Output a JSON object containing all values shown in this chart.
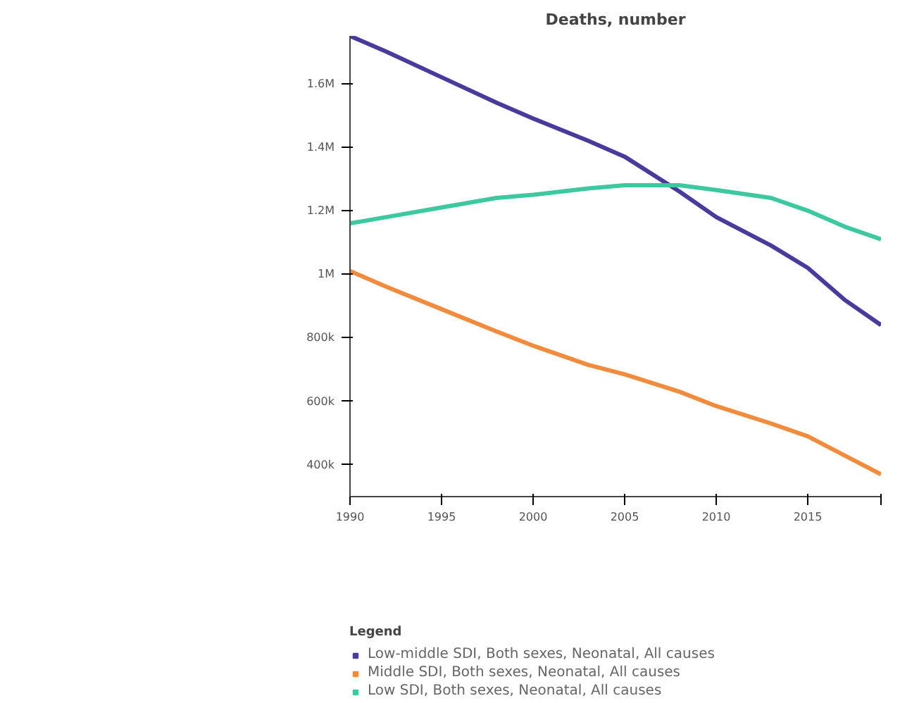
{
  "chart_data": {
    "type": "line",
    "title": "Deaths, number",
    "legend_title": "Legend",
    "x": [
      1990,
      1992,
      1995,
      1998,
      2000,
      2003,
      2005,
      2008,
      2010,
      2013,
      2015,
      2017,
      2019
    ],
    "series": [
      {
        "name": "Low-middle SDI, Both sexes, Neonatal, All causes",
        "color": "#4b3a9e",
        "values": [
          1750000,
          1700000,
          1620000,
          1540000,
          1490000,
          1420000,
          1370000,
          1260000,
          1180000,
          1090000,
          1020000,
          920000,
          840000
        ]
      },
      {
        "name": "Middle SDI, Both sexes, Neonatal, All causes",
        "color": "#f28c3c",
        "values": [
          1010000,
          960000,
          890000,
          820000,
          775000,
          715000,
          685000,
          630000,
          585000,
          530000,
          490000,
          430000,
          370000
        ]
      },
      {
        "name": "Low SDI, Both sexes, Neonatal, All causes",
        "color": "#3dc9a0",
        "values": [
          1160000,
          1180000,
          1210000,
          1240000,
          1250000,
          1270000,
          1280000,
          1280000,
          1265000,
          1240000,
          1200000,
          1150000,
          1110000
        ]
      }
    ],
    "xlim": [
      1990,
      2019
    ],
    "xticks": [
      1990,
      1995,
      2000,
      2005,
      2010,
      2015,
      {
        "value": 2019,
        "label": null
      }
    ],
    "ylim": [
      300000,
      1750000
    ],
    "yticks": [
      {
        "value": 400000,
        "label": "400k"
      },
      {
        "value": 600000,
        "label": "600k"
      },
      {
        "value": 800000,
        "label": "800k"
      },
      {
        "value": 1000000,
        "label": "1M"
      },
      {
        "value": 1200000,
        "label": "1.2M"
      },
      {
        "value": 1400000,
        "label": "1.4M"
      },
      {
        "value": 1600000,
        "label": "1.6M"
      }
    ],
    "grid": false,
    "legend": "bottom"
  }
}
